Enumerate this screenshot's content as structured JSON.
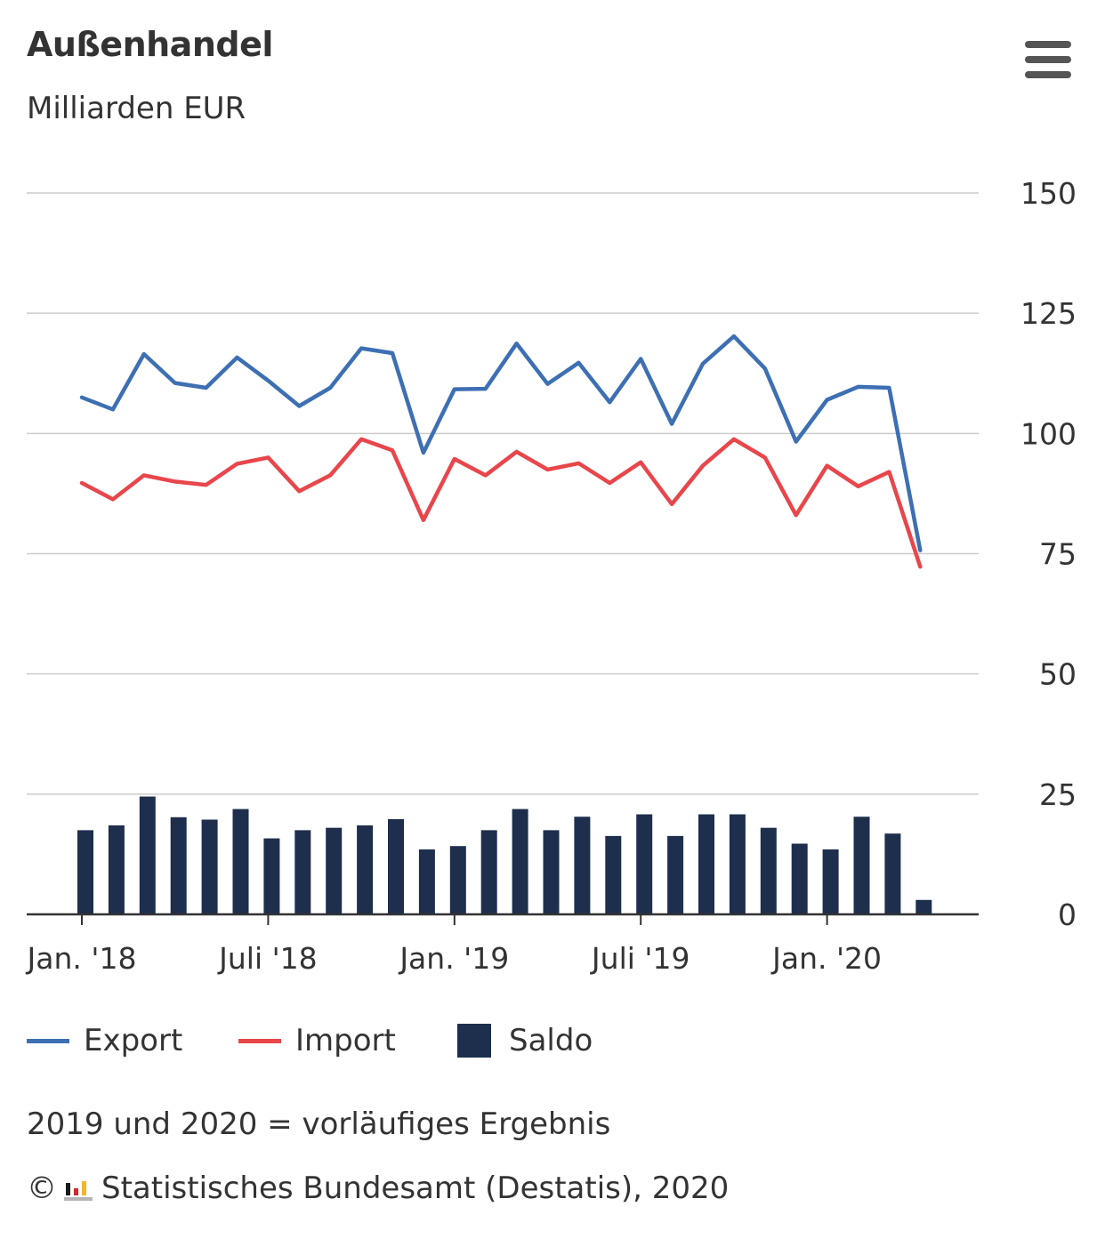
{
  "title": "Außenhandel",
  "subtitle": "Milliarden EUR",
  "menu": {
    "icon": "hamburger-menu-icon"
  },
  "colors": {
    "export": "#3d6fb3",
    "import": "#e8464b",
    "saldo": "#1e2f4d",
    "grid": "#cccccc",
    "axis": "#333333"
  },
  "legend": {
    "export": "Export",
    "import": "Import",
    "saldo": "Saldo"
  },
  "note": "2019 und 2020 = vorläufiges Ergebnis",
  "credits": {
    "symbol": "©",
    "text": "Statistisches Bundesamt (Destatis), 2020",
    "logo_icon": "destatis-logo-icon"
  },
  "chart_data": {
    "type": "line+bar",
    "title": "Außenhandel",
    "ylabel": "Milliarden EUR",
    "xlabel": "",
    "ylim": [
      0,
      150
    ],
    "yticks": [
      0,
      25,
      50,
      75,
      100,
      125,
      150
    ],
    "grid": true,
    "legend_position": "bottom",
    "x_tick_labels": [
      {
        "index": 0,
        "label": "Jan. '18"
      },
      {
        "index": 6,
        "label": "Juli '18"
      },
      {
        "index": 12,
        "label": "Jan. '19"
      },
      {
        "index": 18,
        "label": "Juli '19"
      },
      {
        "index": 24,
        "label": "Jan. '20"
      }
    ],
    "categories": [
      "2018-01",
      "2018-02",
      "2018-03",
      "2018-04",
      "2018-05",
      "2018-06",
      "2018-07",
      "2018-08",
      "2018-09",
      "2018-10",
      "2018-11",
      "2018-12",
      "2019-01",
      "2019-02",
      "2019-03",
      "2019-04",
      "2019-05",
      "2019-06",
      "2019-07",
      "2019-08",
      "2019-09",
      "2019-10",
      "2019-11",
      "2019-12",
      "2020-01",
      "2020-02",
      "2020-03",
      "2020-04"
    ],
    "series": [
      {
        "name": "Export",
        "type": "line",
        "values": [
          107.5,
          105.0,
          116.5,
          110.5,
          109.5,
          115.8,
          111.0,
          105.7,
          109.5,
          117.7,
          116.7,
          96.0,
          109.2,
          109.3,
          118.7,
          110.3,
          114.7,
          106.5,
          115.5,
          102.0,
          114.5,
          120.2,
          113.5,
          98.3,
          107.0,
          109.7,
          109.5,
          75.7
        ]
      },
      {
        "name": "Import",
        "type": "line",
        "values": [
          89.7,
          86.3,
          91.3,
          90.0,
          89.3,
          93.7,
          95.0,
          88.0,
          91.3,
          98.8,
          96.5,
          82.0,
          94.7,
          91.3,
          96.2,
          92.5,
          93.8,
          89.7,
          94.0,
          85.3,
          93.3,
          98.8,
          95.0,
          83.0,
          93.3,
          89.0,
          92.0,
          72.3
        ]
      },
      {
        "name": "Saldo",
        "type": "bar",
        "values": [
          17.5,
          18.5,
          24.5,
          20.2,
          19.7,
          21.9,
          15.8,
          17.5,
          18.0,
          18.5,
          19.8,
          13.5,
          14.2,
          17.5,
          21.9,
          17.5,
          20.3,
          16.3,
          20.8,
          16.3,
          20.8,
          20.8,
          18.0,
          14.7,
          13.5,
          20.3,
          16.8,
          3.0
        ]
      }
    ]
  }
}
